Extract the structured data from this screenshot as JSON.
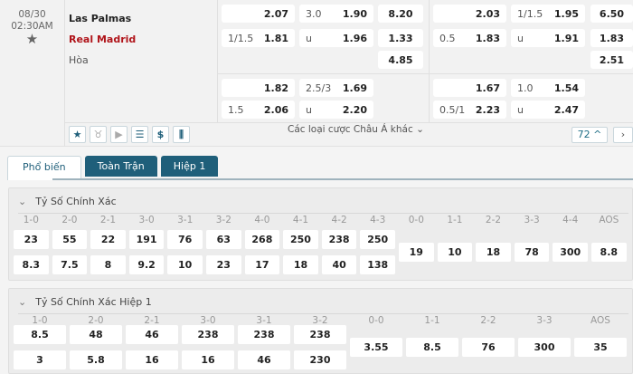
{
  "match": {
    "date": "08/30",
    "time": "02:30AM",
    "home": "Las Palmas",
    "away": "Real Madrid",
    "draw": "Hòa"
  },
  "odds_groups": [
    {
      "ft": {
        "hdp": {
          "home_line": "",
          "home": "2.07",
          "away_line": "1/1.5",
          "away": "1.81"
        },
        "ou": {
          "line": "3.0",
          "over": "1.90",
          "under_label": "u",
          "under": "1.96"
        },
        "x12": {
          "home": "8.20",
          "away": "1.33",
          "draw": "4.85"
        }
      },
      "ht": {
        "hdp": {
          "home_line": "",
          "home": "1.82",
          "away_line": "1.5",
          "away": "2.06"
        },
        "ou": {
          "line": "2.5/3",
          "over": "1.69",
          "under_label": "u",
          "under": "2.20"
        }
      }
    },
    {
      "ft": {
        "hdp": {
          "home_line": "",
          "home": "2.03",
          "away_line": "0.5",
          "away": "1.83"
        },
        "ou": {
          "line": "1/1.5",
          "over": "1.95",
          "under_label": "u",
          "under": "1.91"
        },
        "x12": {
          "home": "6.50",
          "away": "1.83",
          "draw": "2.51"
        }
      },
      "ht": {
        "hdp": {
          "home_line": "",
          "home": "1.67",
          "away_line": "0.5/1",
          "away": "2.23"
        },
        "ou": {
          "line": "1.0",
          "over": "1.54",
          "under_label": "u",
          "under": "2.47"
        }
      }
    }
  ],
  "toolbar": {
    "icons": [
      "star-icon",
      "jersey-icon",
      "play-icon",
      "layers-icon",
      "dollar-icon",
      "stats-icon"
    ],
    "glyphs": [
      "★",
      "♉",
      "▶",
      "☰",
      "$",
      "⫼"
    ],
    "more_label": "Các loại cược Châu Á khác",
    "more_count": "72"
  },
  "tabs": [
    "Phổ biến",
    "Toàn Trận",
    "Hiệp 1"
  ],
  "correct_score": {
    "title": "Tỷ Số Chính Xác",
    "win_labels": [
      "1-0",
      "2-0",
      "2-1",
      "3-0",
      "3-1",
      "3-2",
      "4-0",
      "4-1",
      "4-2",
      "4-3"
    ],
    "home": [
      "23",
      "55",
      "22",
      "191",
      "76",
      "63",
      "268",
      "250",
      "238",
      "250"
    ],
    "away": [
      "8.3",
      "7.5",
      "8",
      "9.2",
      "10",
      "23",
      "17",
      "18",
      "40",
      "138"
    ],
    "draw_labels": [
      "0-0",
      "1-1",
      "2-2",
      "3-3",
      "4-4",
      "AOS"
    ],
    "draw": [
      "19",
      "10",
      "18",
      "78",
      "300",
      "8.8"
    ]
  },
  "correct_score_ht": {
    "title": "Tỷ Số Chính Xác Hiệp 1",
    "win_labels": [
      "1-0",
      "2-0",
      "2-1",
      "3-0",
      "3-1",
      "3-2"
    ],
    "home": [
      "8.5",
      "48",
      "46",
      "238",
      "238",
      "238"
    ],
    "away": [
      "3",
      "5.8",
      "16",
      "16",
      "46",
      "230"
    ],
    "draw_labels": [
      "0-0",
      "1-1",
      "2-2",
      "3-3",
      "AOS"
    ],
    "draw": [
      "3.55",
      "8.5",
      "76",
      "300",
      "35"
    ]
  }
}
